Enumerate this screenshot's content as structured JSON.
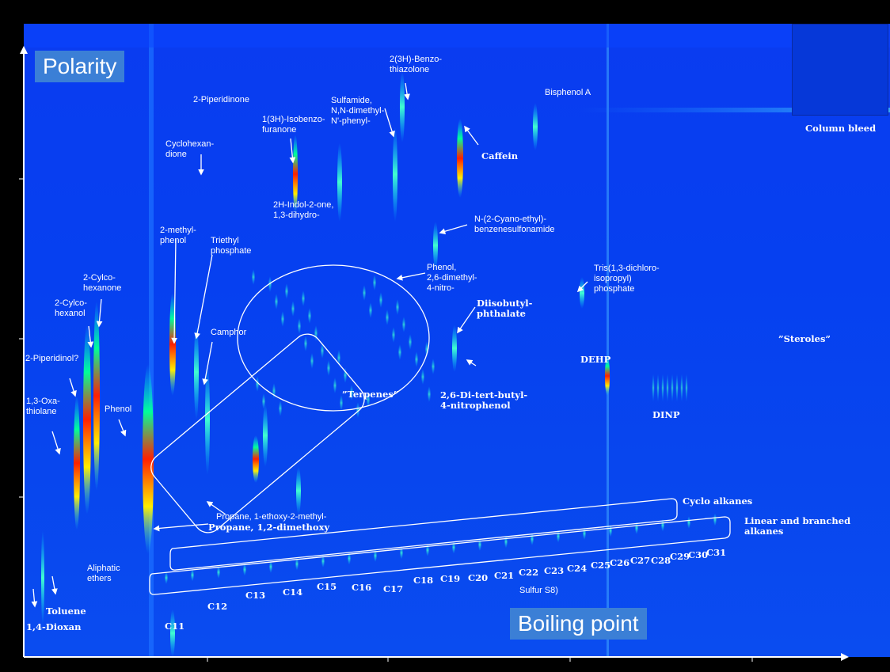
{
  "chart_data": {
    "type": "heatmap",
    "title": "",
    "xlabel": "Boiling point",
    "ylabel": "Polarity",
    "grid": false,
    "inset_label": "Column bleed",
    "compound_labels": [
      {
        "id": "dioxan",
        "text": "1,4-Dioxan",
        "bold": true
      },
      {
        "id": "toluene",
        "text": "Toluene",
        "bold": true
      },
      {
        "id": "oxathiolane",
        "text": "1,3-Oxa-\nthiolane",
        "bold": false
      },
      {
        "id": "piperidinol",
        "text": "2-Piperidinol?",
        "bold": false
      },
      {
        "id": "cyclohexanol",
        "text": "2-Cylco-\nhexanol",
        "bold": false
      },
      {
        "id": "cyclohexanone",
        "text": "2-Cylco-\nhexanone",
        "bold": false
      },
      {
        "id": "phenol",
        "text": "Phenol",
        "bold": false
      },
      {
        "id": "methylphenol",
        "text": "2-methyl-\nphenol",
        "bold": false
      },
      {
        "id": "triethylphosphate",
        "text": "Triethyl\nphosphate",
        "bold": false
      },
      {
        "id": "camphor",
        "text": "Camphor",
        "bold": false
      },
      {
        "id": "cyclohexandione",
        "text": "Cyclohexan-\ndione",
        "bold": false
      },
      {
        "id": "piperidinone",
        "text": "2-Piperidinone",
        "bold": false
      },
      {
        "id": "isobenzofuranone",
        "text": "1(3H)-Isobenzo-\nfuranone",
        "bold": false
      },
      {
        "id": "sulfamide",
        "text": "Sulfamide,\nN,N-dimethyl-\nN'-phenyl-",
        "bold": false
      },
      {
        "id": "benzothiazolone",
        "text": "2(3H)-Benzo-\nthiazolone",
        "bold": false
      },
      {
        "id": "bisphenol",
        "text": "Bisphenol A",
        "bold": false
      },
      {
        "id": "caffein",
        "text": "Caffein",
        "bold": true
      },
      {
        "id": "indolone",
        "text": "2H-Indol-2-one,\n1,3-dihydro-",
        "bold": false
      },
      {
        "id": "cyanoethyl",
        "text": "N-(2-Cyano-ethyl)-\nbenzenesulfonamide",
        "bold": false
      },
      {
        "id": "dimethylnitrophenol",
        "text": "Phenol,\n2,6-dimethyl-\n4-nitro-",
        "bold": false
      },
      {
        "id": "tris",
        "text": "Tris(1,3-dichloro-\nisopropyl)\nphosphate",
        "bold": false
      },
      {
        "id": "diisobutyl",
        "text": "Diisobutyl-\nphthalate",
        "bold": true
      },
      {
        "id": "sterols",
        "text": "”Steroles”",
        "bold": true
      },
      {
        "id": "dehp",
        "text": "DEHP",
        "bold": true
      },
      {
        "id": "terpenes",
        "text": "”Terpenes”",
        "bold": true
      },
      {
        "id": "ditertbutyl",
        "text": "2,6-Di-tert-butyl-\n4-nitrophenol",
        "bold": true
      },
      {
        "id": "dinp",
        "text": "DINP",
        "bold": true
      },
      {
        "id": "ethoxymethylpropane",
        "text": "Propane, 1-ethoxy-2-methyl-",
        "bold": false
      },
      {
        "id": "dimethoxypropane",
        "text": "Propane, 1,2-dimethoxy",
        "bold": true
      },
      {
        "id": "aliphatic",
        "text": "Aliphatic\nethers",
        "bold": false
      },
      {
        "id": "cycloalkanes",
        "text": "Cyclo alkanes",
        "bold": true
      },
      {
        "id": "linear",
        "text": "Linear and branched\nalkanes",
        "bold": true
      },
      {
        "id": "sulfur",
        "text": "Sulfur S8)",
        "bold": false
      }
    ],
    "alkane_labels": [
      "C11",
      "C12",
      "C13",
      "C14",
      "C15",
      "C16",
      "C17",
      "C18",
      "C19",
      "C20",
      "C21",
      "C22",
      "C23",
      "C24",
      "C25",
      "C26",
      "C27",
      "C28",
      "C29",
      "C30",
      "C31"
    ]
  }
}
